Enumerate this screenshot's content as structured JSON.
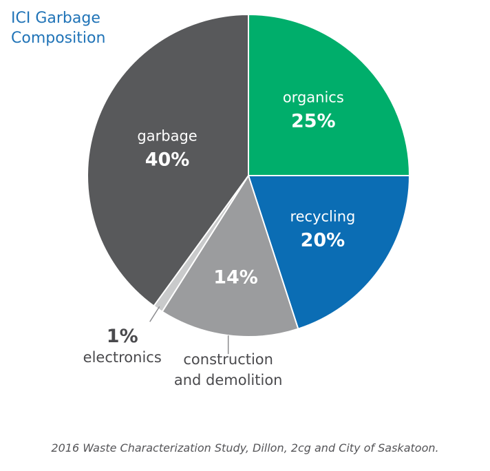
{
  "title_line1": "ICI Garbage",
  "title_line2": "Composition",
  "source_note": "2016 Waste Characterization Study, Dillon, 2cg and City of Saskatoon.",
  "colors": {
    "title": "#1f73b7",
    "inside_label": "#ffffff",
    "outside_label": "#4a4a4d",
    "source": "#555558",
    "leader_line": "#8a8a8d"
  },
  "chart_data": {
    "type": "pie",
    "title": "ICI Garbage Composition",
    "start": "top",
    "direction": "clockwise",
    "slices": [
      {
        "label": "organics",
        "value": 25,
        "display": "25%",
        "color": "#00ae6b",
        "label_position": "inside"
      },
      {
        "label": "recycling",
        "value": 20,
        "display": "20%",
        "color": "#0b6db4",
        "label_position": "inside"
      },
      {
        "label": "construction\nand demolition",
        "value": 14,
        "display": "14%",
        "color": "#9b9c9e",
        "label_position": "outside"
      },
      {
        "label": "electronics",
        "value": 1,
        "display": "1%",
        "color": "#c9cacb",
        "label_position": "outside"
      },
      {
        "label": "garbage",
        "value": 40,
        "display": "40%",
        "color": "#58595b",
        "label_position": "inside"
      }
    ]
  }
}
